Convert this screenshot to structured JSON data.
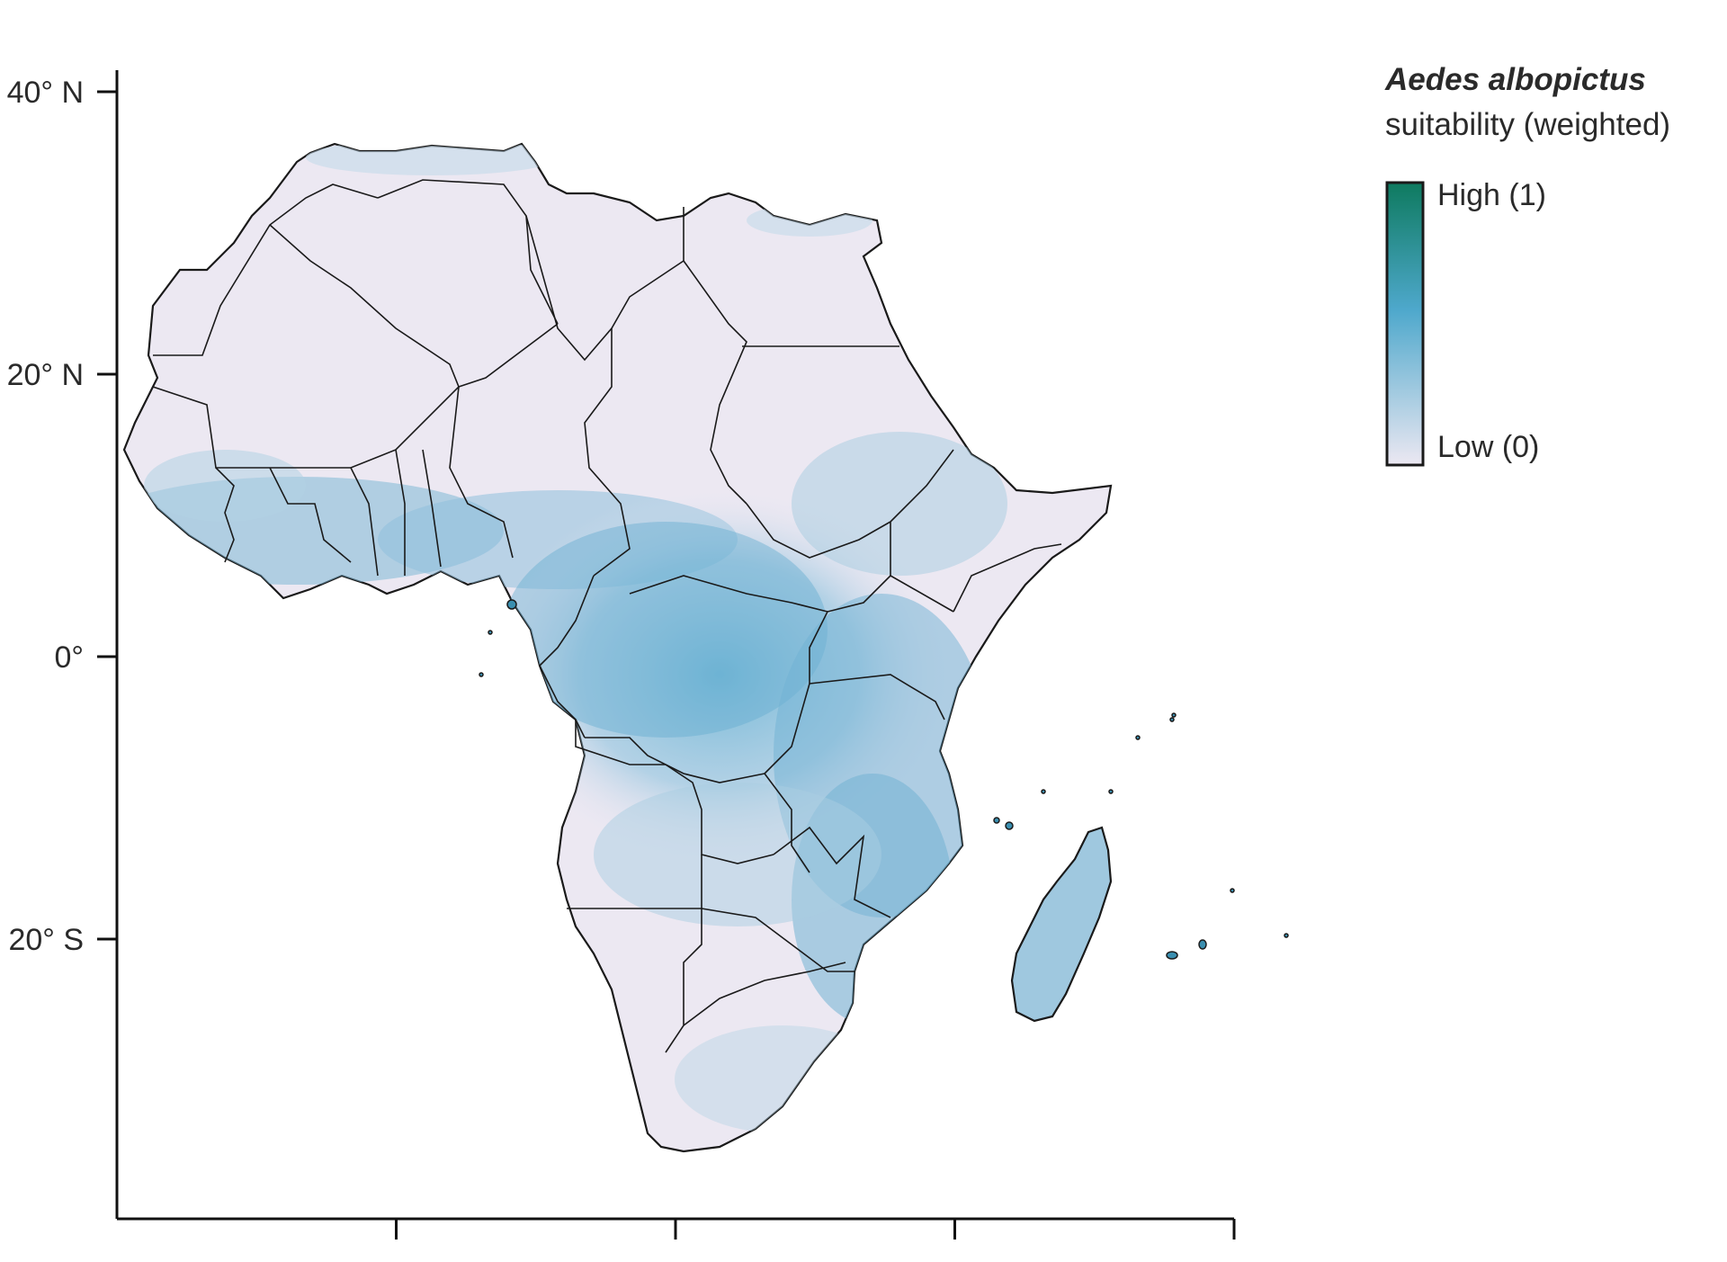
{
  "axes": {
    "y_ticks": [
      {
        "label": "40° N",
        "value": 40
      },
      {
        "label": "20° N",
        "value": 20
      },
      {
        "label": "0°",
        "value": 0
      },
      {
        "label": "20° S",
        "value": -20
      }
    ],
    "x_ticks_count": 4
  },
  "legend": {
    "title_line1": "Aedes albopictus",
    "title_line2": "suitability (weighted)",
    "high_label": "High (1)",
    "low_label": "Low (0)",
    "color_high": "#0e7a5f",
    "color_mid": "#4ea8cc",
    "color_low": "#ece8f2"
  },
  "colors": {
    "land_low": "#ece8f2",
    "suit_mid": "#9dc7df",
    "suit_high": "#3f9fc6",
    "border": "#1a1a1a",
    "axis": "#111111"
  }
}
